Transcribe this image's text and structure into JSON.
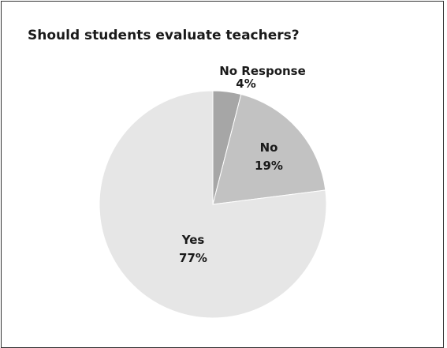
{
  "chart_data": {
    "type": "pie",
    "title": "Should students evaluate teachers?",
    "slices": [
      {
        "label": "No Response",
        "value_label": "4%",
        "value": 4,
        "color": "#a6a6a6"
      },
      {
        "label": "No",
        "value_label": "19%",
        "value": 19,
        "color": "#c2c2c2"
      },
      {
        "label": "Yes",
        "value_label": "77%",
        "value": 77,
        "color": "#e6e6e6"
      }
    ]
  }
}
